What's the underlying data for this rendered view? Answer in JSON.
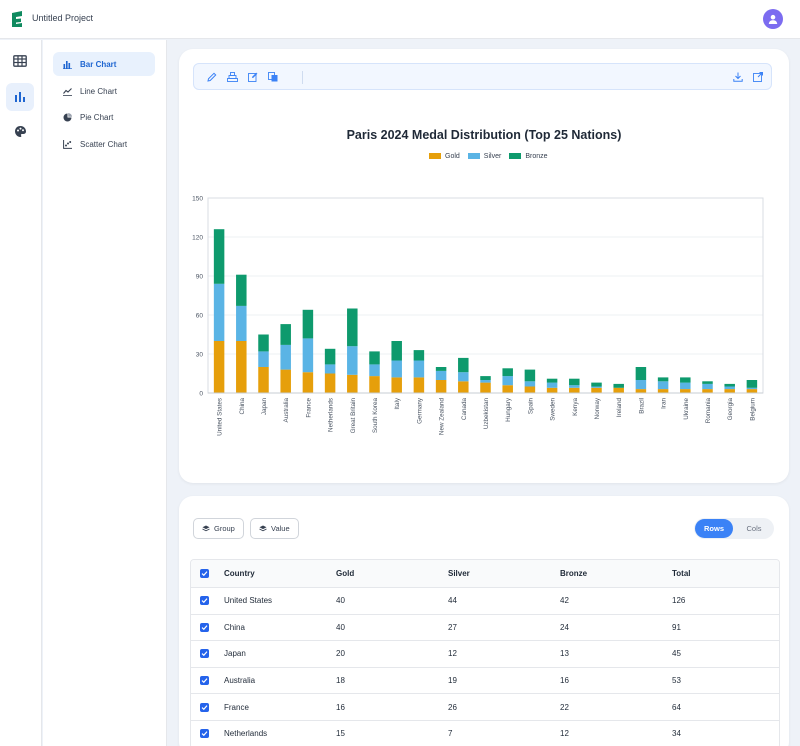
{
  "app": {
    "title": "Untitled Project"
  },
  "rail": {
    "items": [
      {
        "icon": "table-icon"
      },
      {
        "icon": "bar-chart-icon"
      },
      {
        "icon": "palette-icon"
      }
    ]
  },
  "sidenav": {
    "items": [
      {
        "label": "Bar Chart",
        "icon": "bar-chart-icon",
        "active": true
      },
      {
        "label": "Line Chart",
        "icon": "line-chart-icon"
      },
      {
        "label": "Pie Chart",
        "icon": "pie-chart-icon"
      },
      {
        "label": "Scatter Chart",
        "icon": "scatter-chart-icon"
      }
    ]
  },
  "toolbar": {
    "left_icons": [
      "pencil-icon",
      "stack-icon",
      "edit-icon",
      "copy-icon"
    ],
    "right_icons": [
      "download-icon",
      "open-external-icon"
    ]
  },
  "chart_data": {
    "type": "bar",
    "stacked": true,
    "title": "Paris 2024 Medal Distribution (Top 25 Nations)",
    "xlabel": "",
    "ylabel": "",
    "ylim": [
      0,
      150
    ],
    "yticks": [
      0,
      30,
      60,
      90,
      120,
      150
    ],
    "grid": true,
    "legend_position": "top",
    "categories": [
      "United States",
      "China",
      "Japan",
      "Australia",
      "France",
      "Netherlands",
      "Great Britain",
      "South Korea",
      "Italy",
      "Germany",
      "New Zealand",
      "Canada",
      "Uzbekistan",
      "Hungary",
      "Spain",
      "Sweden",
      "Kenya",
      "Norway",
      "Ireland",
      "Brazil",
      "Iran",
      "Ukraine",
      "Romania",
      "Georgia",
      "Belgium"
    ],
    "series": [
      {
        "name": "Gold",
        "color": "#e69f0b",
        "values": [
          40,
          40,
          20,
          18,
          16,
          15,
          14,
          13,
          12,
          12,
          10,
          9,
          8,
          6,
          5,
          4,
          4,
          4,
          4,
          3,
          3,
          3,
          3,
          3,
          3
        ]
      },
      {
        "name": "Silver",
        "color": "#5ab4e5",
        "values": [
          44,
          27,
          12,
          19,
          26,
          7,
          22,
          9,
          13,
          13,
          7,
          7,
          2,
          7,
          4,
          4,
          2,
          1,
          0,
          7,
          6,
          5,
          4,
          2,
          1
        ]
      },
      {
        "name": "Bronze",
        "color": "#0e9a6d",
        "values": [
          42,
          24,
          13,
          16,
          22,
          12,
          29,
          10,
          15,
          8,
          3,
          11,
          3,
          6,
          9,
          3,
          5,
          3,
          3,
          10,
          3,
          4,
          2,
          2,
          6
        ]
      }
    ]
  },
  "table_controls": {
    "group_label": "Group",
    "value_label": "Value",
    "rows_label": "Rows",
    "cols_label": "Cols"
  },
  "table": {
    "headers": [
      "Country",
      "Gold",
      "Silver",
      "Bronze",
      "Total"
    ],
    "rows": [
      [
        "United States",
        "40",
        "44",
        "42",
        "126"
      ],
      [
        "China",
        "40",
        "27",
        "24",
        "91"
      ],
      [
        "Japan",
        "20",
        "12",
        "13",
        "45"
      ],
      [
        "Australia",
        "18",
        "19",
        "16",
        "53"
      ],
      [
        "France",
        "16",
        "26",
        "22",
        "64"
      ],
      [
        "Netherlands",
        "15",
        "7",
        "12",
        "34"
      ]
    ]
  }
}
